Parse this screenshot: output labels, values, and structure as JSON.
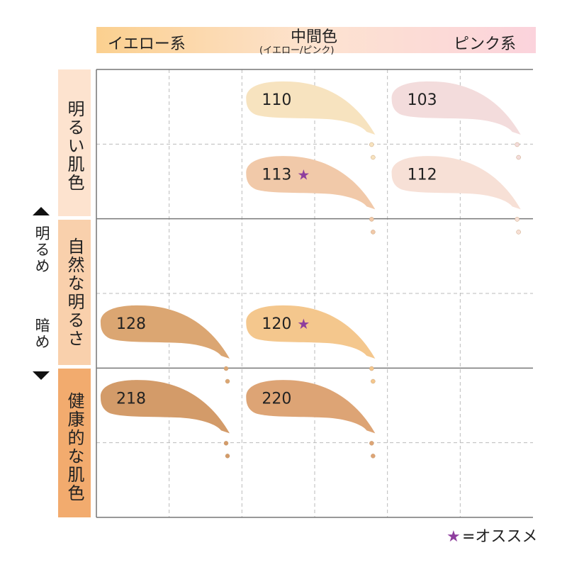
{
  "header": {
    "yellow": "イエロー系",
    "neutral": "中間色",
    "neutral_sub": "(イエロー/ピンク)",
    "pink": "ピンク系"
  },
  "rows": [
    "明るい肌色",
    "自然な明るさ",
    "健康的な肌色"
  ],
  "axis": {
    "lighter": "明るめ",
    "darker": "暗め"
  },
  "swatches": [
    {
      "label": "110",
      "color": "#f7e3bf",
      "recommended": false
    },
    {
      "label": "103",
      "color": "#f3dcdc",
      "recommended": false
    },
    {
      "label": "113",
      "color": "#f1c9a9",
      "recommended": true
    },
    {
      "label": "112",
      "color": "#f7e0d6",
      "recommended": false
    },
    {
      "label": "128",
      "color": "#dba672",
      "recommended": false
    },
    {
      "label": "120",
      "color": "#f4c78d",
      "recommended": true
    },
    {
      "label": "218",
      "color": "#d39b69",
      "recommended": false
    },
    {
      "label": "220",
      "color": "#dda475",
      "recommended": false
    }
  ],
  "legend": {
    "symbol": "★",
    "text": "=オススメ"
  }
}
